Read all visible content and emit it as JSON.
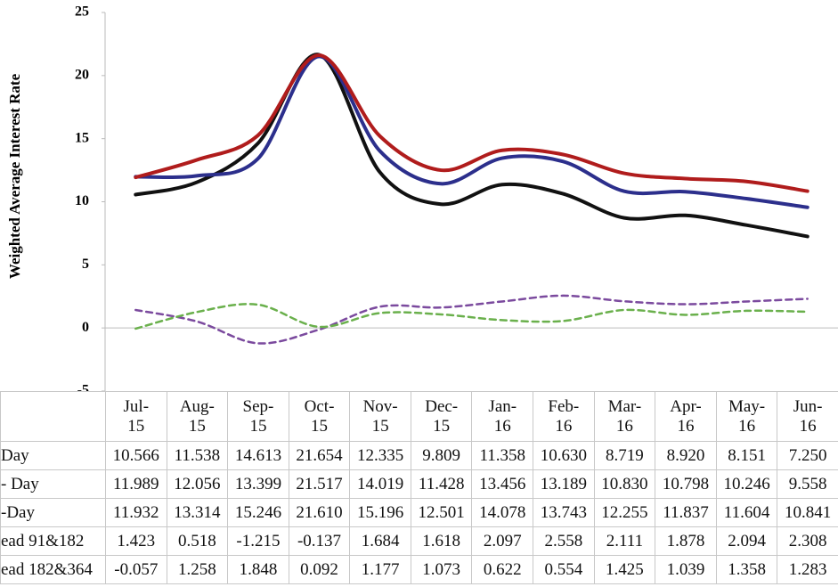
{
  "chart_data": {
    "type": "line",
    "y_label": "Weighted Average Interest Rate",
    "categories": [
      "Jul-15",
      "Aug-15",
      "Sep-15",
      "Oct-15",
      "Nov-15",
      "Dec-15",
      "Jan-16",
      "Feb-16",
      "Mar-16",
      "Apr-16",
      "May-16",
      "Jun-16"
    ],
    "ylim": [
      -5,
      25
    ],
    "yticks": [
      -5,
      0,
      5,
      10,
      15,
      20,
      25
    ],
    "grid": false,
    "series": [
      {
        "name": "Day",
        "color": "#111111",
        "dashed": false,
        "values": [
          10.566,
          11.538,
          14.613,
          21.654,
          12.335,
          9.809,
          11.358,
          10.63,
          8.719,
          8.92,
          8.151,
          7.25
        ],
        "value_labels": [
          "10.566",
          "11.538",
          "14.613",
          "21.654",
          "12.335",
          "9.809",
          "11.358",
          "10.630",
          "8.719",
          "8.920",
          "8.151",
          "7.250"
        ]
      },
      {
        "name": "- Day",
        "color": "#2c2f8c",
        "dashed": false,
        "values": [
          11.989,
          12.056,
          13.399,
          21.517,
          14.019,
          11.428,
          13.456,
          13.189,
          10.83,
          10.798,
          10.246,
          9.558
        ],
        "value_labels": [
          "11.989",
          "12.056",
          "13.399",
          "21.517",
          "14.019",
          "11.428",
          "13.456",
          "13.189",
          "10.830",
          "10.798",
          "10.246",
          "9.558"
        ]
      },
      {
        "name": "-Day",
        "color": "#b01c1c",
        "dashed": false,
        "values": [
          11.932,
          13.314,
          15.246,
          21.61,
          15.196,
          12.501,
          14.078,
          13.743,
          12.255,
          11.837,
          11.604,
          10.841
        ],
        "value_labels": [
          "11.932",
          "13.314",
          "15.246",
          "21.610",
          "15.196",
          "12.501",
          "14.078",
          "13.743",
          "12.255",
          "11.837",
          "11.604",
          "10.841"
        ]
      },
      {
        "name": "ead 91&182",
        "color": "#7b4a9e",
        "dashed": true,
        "values": [
          1.423,
          0.518,
          -1.215,
          -0.137,
          1.684,
          1.618,
          2.097,
          2.558,
          2.111,
          1.878,
          2.094,
          2.308
        ],
        "value_labels": [
          "1.423",
          "0.518",
          "-1.215",
          "-0.137",
          "1.684",
          "1.618",
          "2.097",
          "2.558",
          "2.111",
          "1.878",
          "2.094",
          "2.308"
        ]
      },
      {
        "name": "ead 182&364",
        "color": "#6ab04c",
        "dashed": true,
        "values": [
          -0.057,
          1.258,
          1.848,
          0.092,
          1.177,
          1.073,
          0.622,
          0.554,
          1.425,
          1.039,
          1.358,
          1.283
        ],
        "value_labels": [
          "-0.057",
          "1.258",
          "1.848",
          "0.092",
          "1.177",
          "1.073",
          "0.622",
          "0.554",
          "1.425",
          "1.039",
          "1.358",
          "1.283"
        ]
      }
    ]
  }
}
